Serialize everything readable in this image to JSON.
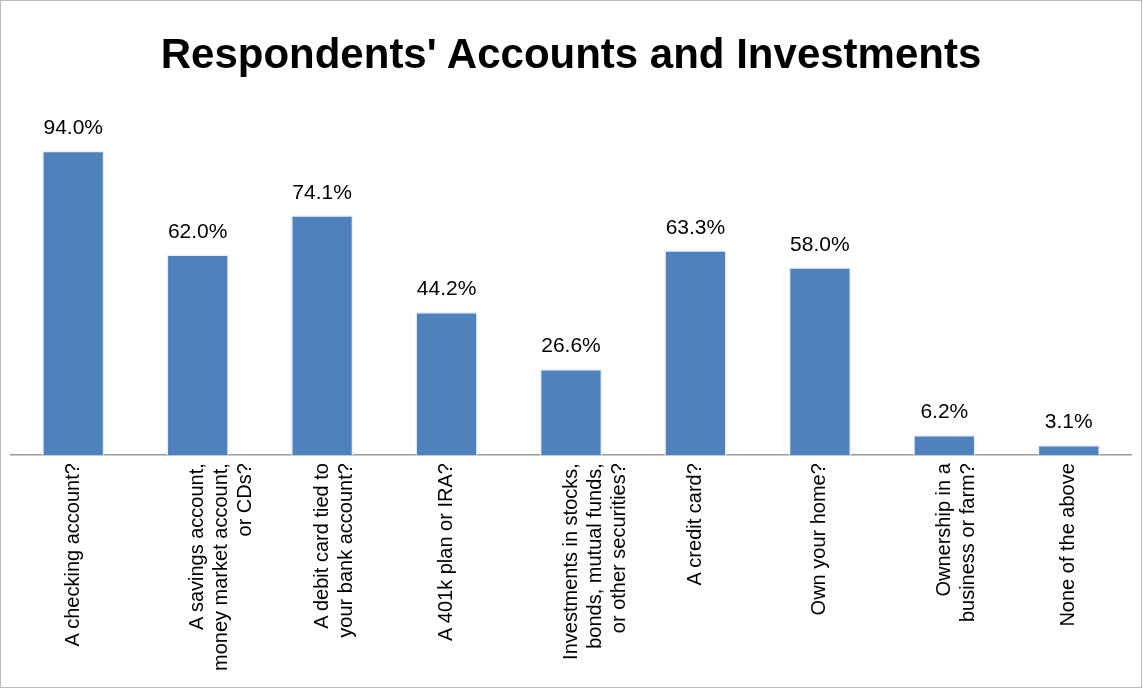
{
  "chart_data": {
    "type": "bar",
    "title": "Respondents' Accounts and Investments",
    "categories": [
      "A checking account?",
      "A savings account, money market account, or CDs?",
      "A debit card tied to your bank account?",
      "A 401k plan or IRA?",
      "Investments in stocks, bonds, mutual funds, or other securities?",
      "A credit card?",
      "Own your home?",
      "Ownership in a business or farm?",
      "None of the above"
    ],
    "values": [
      94.0,
      62.0,
      74.1,
      44.2,
      26.6,
      63.3,
      58.0,
      6.2,
      3.1
    ],
    "value_labels": [
      "94.0%",
      "62.0%",
      "74.1%",
      "44.2%",
      "26.6%",
      "63.3%",
      "58.0%",
      "6.2%",
      "3.1%"
    ],
    "color": "#4f81bd"
  }
}
